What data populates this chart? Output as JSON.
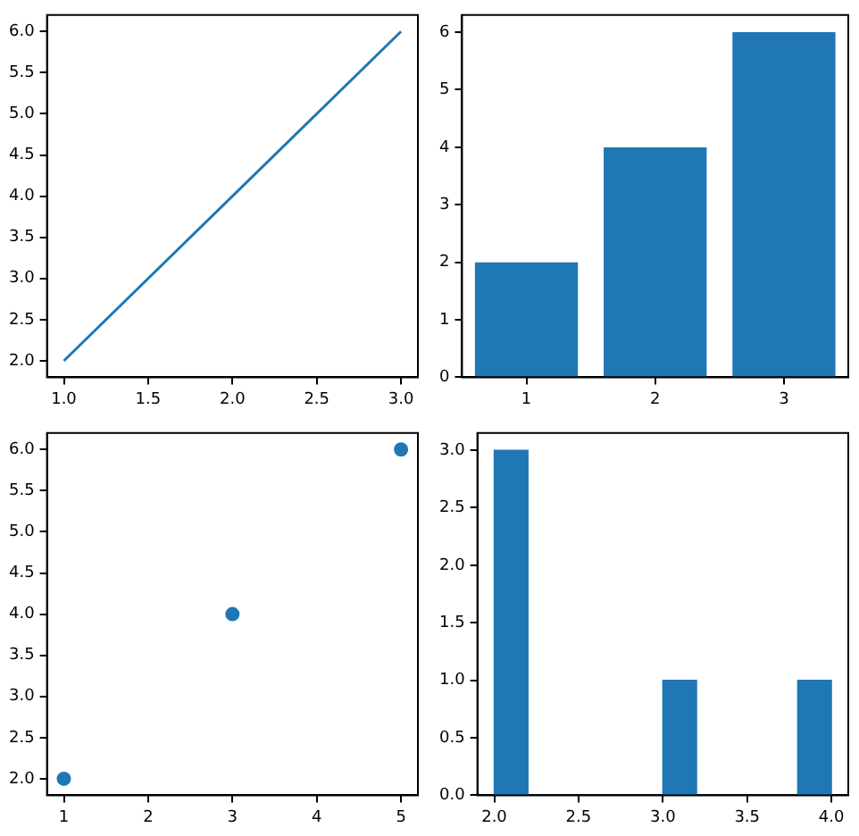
{
  "chart_data": [
    {
      "type": "line",
      "x": [
        1,
        2,
        3
      ],
      "values": [
        2,
        4,
        6
      ],
      "color": "#1f77b4",
      "xlim": [
        0.9,
        3.1
      ],
      "xticks": [
        {
          "value": 1,
          "label": "1.0"
        },
        {
          "value": 1.5,
          "label": "1.5"
        },
        {
          "value": 2,
          "label": "2.0"
        },
        {
          "value": 2.5,
          "label": "2.5"
        },
        {
          "value": 3,
          "label": "3.0"
        }
      ],
      "ylim": [
        1.8,
        6.2
      ],
      "yticks": [
        {
          "value": 2,
          "label": "2.0"
        },
        {
          "value": 2.5,
          "label": "2.5"
        },
        {
          "value": 3,
          "label": "3.0"
        },
        {
          "value": 3.5,
          "label": "3.5"
        },
        {
          "value": 4,
          "label": "4.0"
        },
        {
          "value": 4.5,
          "label": "4.5"
        },
        {
          "value": 5,
          "label": "5.0"
        },
        {
          "value": 5.5,
          "label": "5.5"
        },
        {
          "value": 6,
          "label": "6.0"
        }
      ],
      "grid": false,
      "legend": false,
      "marker": "none"
    },
    {
      "type": "bar",
      "categories": [
        "1",
        "2",
        "3"
      ],
      "values": [
        2,
        4,
        6
      ],
      "color": "#1f77b4",
      "ylim": [
        0,
        6.3
      ],
      "yticks": [
        0,
        1,
        2,
        3,
        4,
        5,
        6
      ],
      "grid": false,
      "legend": false
    },
    {
      "type": "scatter",
      "x": [
        1,
        3,
        5
      ],
      "values": [
        2,
        4,
        6
      ],
      "color": "#1f77b4",
      "xlim": [
        0.8,
        5.2
      ],
      "xticks": [
        1,
        2,
        3,
        4,
        5
      ],
      "ylim": [
        1.8,
        6.2
      ],
      "yticks": [
        {
          "value": 2,
          "label": "2.0"
        },
        {
          "value": 2.5,
          "label": "2.5"
        },
        {
          "value": 3,
          "label": "3.0"
        },
        {
          "value": 3.5,
          "label": "3.5"
        },
        {
          "value": 4,
          "label": "4.0"
        },
        {
          "value": 4.5,
          "label": "4.5"
        },
        {
          "value": 5,
          "label": "5.0"
        },
        {
          "value": 5.5,
          "label": "5.5"
        },
        {
          "value": 6,
          "label": "6.0"
        }
      ],
      "grid": false,
      "legend": false,
      "marker": "circle"
    },
    {
      "type": "histogram",
      "bins": [
        2,
        2.2,
        2.4,
        2.6,
        2.8,
        3,
        3.2,
        3.4,
        3.6,
        3.8,
        4
      ],
      "values": [
        3,
        0,
        0,
        0,
        0,
        1,
        0,
        0,
        0,
        1
      ],
      "color": "#1f77b4",
      "xlim": [
        1.9,
        4.1
      ],
      "xticks": [
        {
          "value": 2,
          "label": "2.0"
        },
        {
          "value": 2.5,
          "label": "2.5"
        },
        {
          "value": 3,
          "label": "3.0"
        },
        {
          "value": 3.5,
          "label": "3.5"
        },
        {
          "value": 4,
          "label": "4.0"
        }
      ],
      "ylim": [
        0,
        3.15
      ],
      "yticks": [
        {
          "value": 0,
          "label": "0.0"
        },
        {
          "value": 0.5,
          "label": "0.5"
        },
        {
          "value": 1,
          "label": "1.0"
        },
        {
          "value": 1.5,
          "label": "1.5"
        },
        {
          "value": 2,
          "label": "2.0"
        },
        {
          "value": 2.5,
          "label": "2.5"
        },
        {
          "value": 3,
          "label": "3.0"
        }
      ],
      "grid": false,
      "legend": false
    }
  ]
}
